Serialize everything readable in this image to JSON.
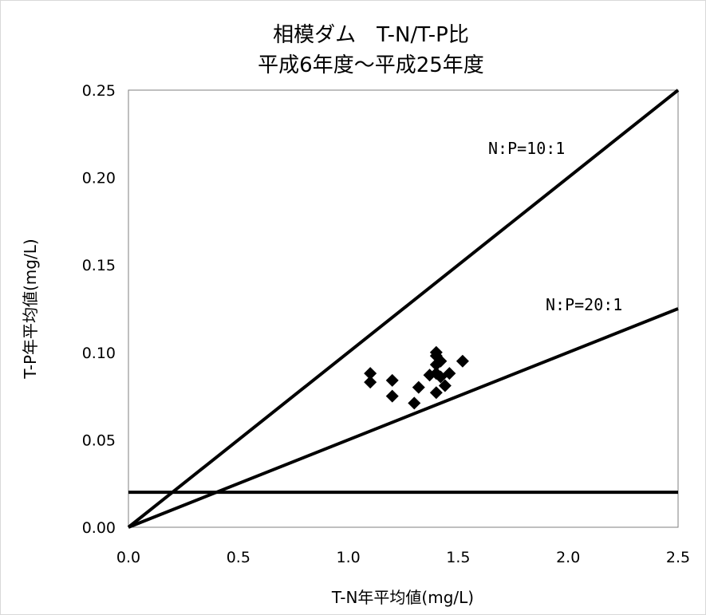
{
  "chart_data": {
    "type": "scatter",
    "title": "相模ダム　T-N/T-P比",
    "subtitle": "平成6年度～平成25年度",
    "xlabel": "T-N年平均値(mg/L)",
    "ylabel": "T-P年平均値(mg/L)",
    "xlim": [
      0,
      2.5
    ],
    "ylim": [
      0,
      0.25
    ],
    "x_ticks": [
      "0.0",
      "0.5",
      "1.0",
      "1.5",
      "2.0",
      "2.5"
    ],
    "y_ticks": [
      "0.00",
      "0.05",
      "0.10",
      "0.15",
      "0.20",
      "0.25"
    ],
    "x_tick_values": [
      0,
      0.5,
      1.0,
      1.5,
      2.0,
      2.5
    ],
    "y_tick_values": [
      0,
      0.05,
      0.1,
      0.15,
      0.2,
      0.25
    ],
    "grid": false,
    "points": [
      {
        "x": 1.1,
        "y": 0.088
      },
      {
        "x": 1.1,
        "y": 0.083
      },
      {
        "x": 1.2,
        "y": 0.084
      },
      {
        "x": 1.2,
        "y": 0.075
      },
      {
        "x": 1.3,
        "y": 0.071
      },
      {
        "x": 1.32,
        "y": 0.08
      },
      {
        "x": 1.37,
        "y": 0.087
      },
      {
        "x": 1.4,
        "y": 0.1
      },
      {
        "x": 1.4,
        "y": 0.098
      },
      {
        "x": 1.4,
        "y": 0.093
      },
      {
        "x": 1.4,
        "y": 0.088
      },
      {
        "x": 1.4,
        "y": 0.077
      },
      {
        "x": 1.42,
        "y": 0.095
      },
      {
        "x": 1.42,
        "y": 0.086
      },
      {
        "x": 1.44,
        "y": 0.081
      },
      {
        "x": 1.46,
        "y": 0.088
      },
      {
        "x": 1.52,
        "y": 0.095
      }
    ],
    "reference_lines": [
      {
        "label": "N:P=10:1",
        "x1": 0,
        "y1": 0,
        "x2": 2.5,
        "y2": 0.25
      },
      {
        "label": "N:P=20:1",
        "x1": 0,
        "y1": 0,
        "x2": 2.5,
        "y2": 0.125
      },
      {
        "label": "",
        "x1": 0,
        "y1": 0.02,
        "x2": 2.5,
        "y2": 0.02
      }
    ],
    "colors": {
      "marker": "#000000",
      "line": "#000000"
    }
  }
}
